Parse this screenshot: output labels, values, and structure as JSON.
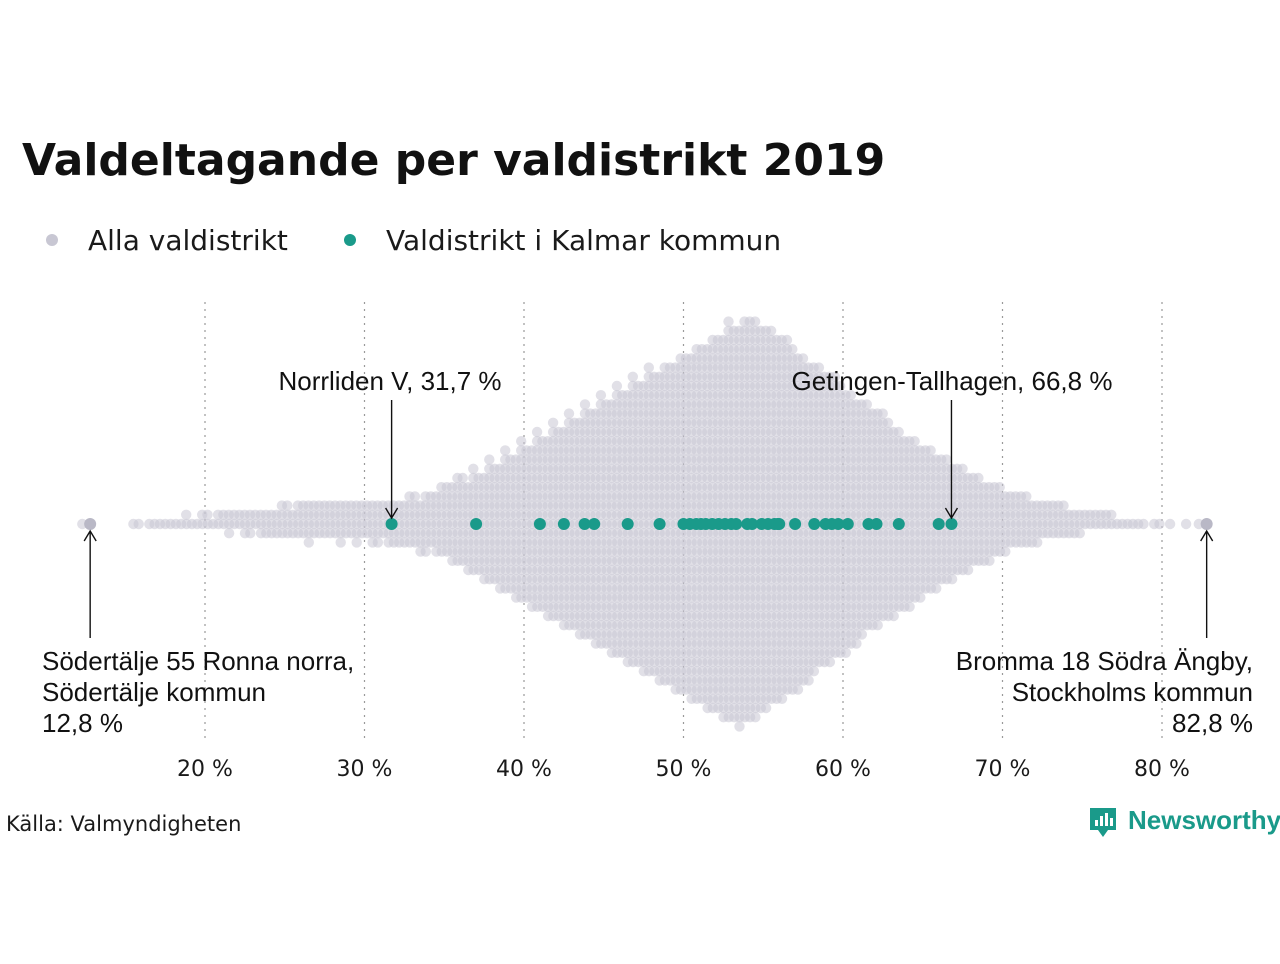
{
  "chart_data": {
    "type": "scatter",
    "subtype": "beeswarm",
    "title": "Valdeltagande per valdistrikt 2019",
    "xlabel": "",
    "ylabel": "",
    "xlim": [
      12,
      85
    ],
    "x_ticks": [
      {
        "value": 20,
        "label": "20 %"
      },
      {
        "value": 30,
        "label": "30 %"
      },
      {
        "value": 40,
        "label": "40 %"
      },
      {
        "value": 50,
        "label": "50 %"
      },
      {
        "value": 60,
        "label": "60 %"
      },
      {
        "value": 70,
        "label": "70 %"
      },
      {
        "value": 80,
        "label": "80 %"
      }
    ],
    "grid": "vertical-dotted",
    "legend_position": "top-left",
    "series": [
      {
        "name": "Alla valdistrikt",
        "color": "#c8c7d3",
        "note": "background swarm of all districts, approx. distribution by value",
        "distribution": [
          {
            "x": 12.8,
            "count": 1
          },
          {
            "x": 16,
            "count": 2
          },
          {
            "x": 17,
            "count": 3
          },
          {
            "x": 18,
            "count": 3
          },
          {
            "x": 19,
            "count": 4
          },
          {
            "x": 20,
            "count": 5
          },
          {
            "x": 21,
            "count": 6
          },
          {
            "x": 22,
            "count": 7
          },
          {
            "x": 23,
            "count": 8
          },
          {
            "x": 24,
            "count": 9
          },
          {
            "x": 25,
            "count": 11
          },
          {
            "x": 26,
            "count": 12
          },
          {
            "x": 27,
            "count": 13
          },
          {
            "x": 28,
            "count": 12
          },
          {
            "x": 29,
            "count": 13
          },
          {
            "x": 30,
            "count": 13
          },
          {
            "x": 31,
            "count": 14
          },
          {
            "x": 32,
            "count": 15
          },
          {
            "x": 33,
            "count": 17
          },
          {
            "x": 34,
            "count": 20
          },
          {
            "x": 35,
            "count": 24
          },
          {
            "x": 36,
            "count": 29
          },
          {
            "x": 37,
            "count": 34
          },
          {
            "x": 38,
            "count": 40
          },
          {
            "x": 39,
            "count": 46
          },
          {
            "x": 40,
            "count": 52
          },
          {
            "x": 41,
            "count": 58
          },
          {
            "x": 42,
            "count": 64
          },
          {
            "x": 43,
            "count": 70
          },
          {
            "x": 44,
            "count": 76
          },
          {
            "x": 45,
            "count": 82
          },
          {
            "x": 46,
            "count": 88
          },
          {
            "x": 47,
            "count": 94
          },
          {
            "x": 48,
            "count": 100
          },
          {
            "x": 49,
            "count": 105
          },
          {
            "x": 50,
            "count": 111
          },
          {
            "x": 51,
            "count": 117
          },
          {
            "x": 52,
            "count": 123
          },
          {
            "x": 53,
            "count": 130
          },
          {
            "x": 54,
            "count": 133
          },
          {
            "x": 55,
            "count": 127
          },
          {
            "x": 56,
            "count": 120
          },
          {
            "x": 57,
            "count": 112
          },
          {
            "x": 58,
            "count": 104
          },
          {
            "x": 59,
            "count": 96
          },
          {
            "x": 60,
            "count": 88
          },
          {
            "x": 61,
            "count": 80
          },
          {
            "x": 62,
            "count": 72
          },
          {
            "x": 63,
            "count": 64
          },
          {
            "x": 64,
            "count": 57
          },
          {
            "x": 65,
            "count": 50
          },
          {
            "x": 66,
            "count": 44
          },
          {
            "x": 67,
            "count": 38
          },
          {
            "x": 68,
            "count": 32
          },
          {
            "x": 69,
            "count": 27
          },
          {
            "x": 70,
            "count": 22
          },
          {
            "x": 71,
            "count": 18
          },
          {
            "x": 72,
            "count": 15
          },
          {
            "x": 73,
            "count": 12
          },
          {
            "x": 74,
            "count": 10
          },
          {
            "x": 75,
            "count": 8
          },
          {
            "x": 76,
            "count": 6
          },
          {
            "x": 77,
            "count": 4
          },
          {
            "x": 78,
            "count": 3
          },
          {
            "x": 79,
            "count": 2
          },
          {
            "x": 80,
            "count": 2
          },
          {
            "x": 81,
            "count": 1
          },
          {
            "x": 82,
            "count": 1
          },
          {
            "x": 82.8,
            "count": 1
          }
        ]
      },
      {
        "name": "Valdistrikt i Kalmar kommun",
        "color": "#1a9a8a",
        "x": [
          31.7,
          37.0,
          41.0,
          42.5,
          43.8,
          44.4,
          46.5,
          48.5,
          50.0,
          50.4,
          50.8,
          51.1,
          51.4,
          51.8,
          52.2,
          52.6,
          53.0,
          53.3,
          54.0,
          54.3,
          54.9,
          55.3,
          55.7,
          55.9,
          56.0,
          57.0,
          58.2,
          58.9,
          59.3,
          59.7,
          60.3,
          61.6,
          62.1,
          63.5,
          66.0,
          66.8
        ]
      }
    ],
    "annotations": [
      {
        "x": 31.7,
        "lines": [
          "Norrliden V, 31,7 %"
        ]
      },
      {
        "x": 66.8,
        "lines": [
          "Getingen-Tallhagen, 66,8 %"
        ]
      },
      {
        "x": 12.8,
        "lines": [
          "Södertälje 55 Ronna norra,",
          "Södertälje kommun",
          "12,8 %"
        ]
      },
      {
        "x": 82.8,
        "lines": [
          "Bromma 18 Södra Ängby,",
          "Stockholms kommun",
          "82,8 %"
        ]
      }
    ],
    "source": "Källa: Valmyndigheten"
  },
  "brand": {
    "name": "Newsworthy",
    "icon": "newsworthy-logo-icon",
    "color": "#1a9a8a"
  },
  "legend": {
    "items": [
      {
        "label": "Alla valdistrikt",
        "color": "#c8c7d3"
      },
      {
        "label": "Valdistrikt i Kalmar kommun",
        "color": "#1a9a8a"
      }
    ]
  }
}
